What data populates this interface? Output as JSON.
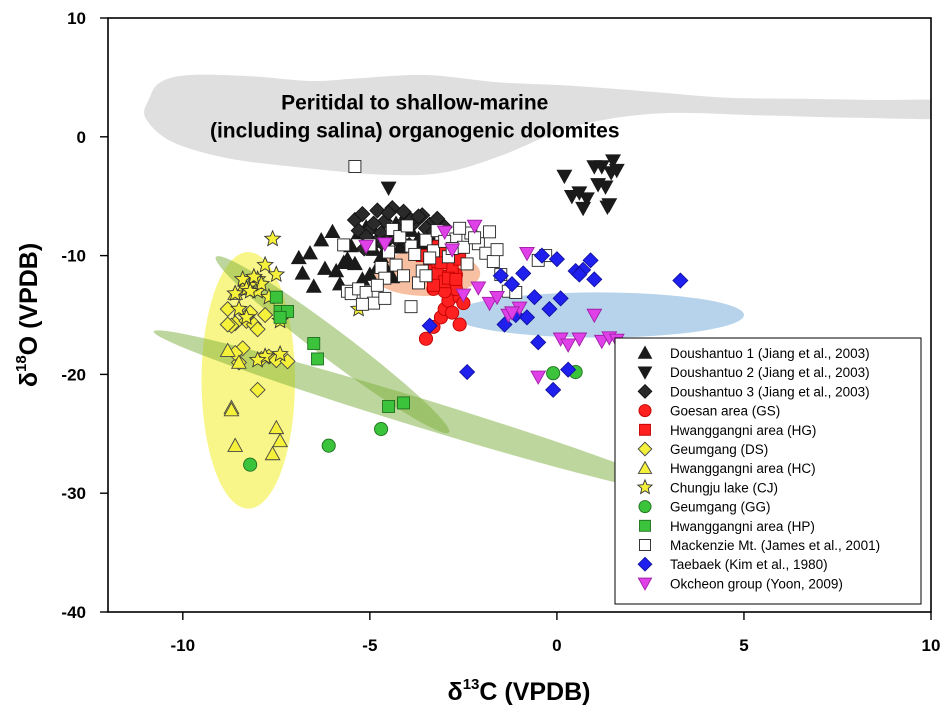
{
  "chart_data": {
    "type": "scatter",
    "title": "",
    "xlabel": {
      "prefix": "δ",
      "sup": "13",
      "rest": "C (VPDB)"
    },
    "ylabel": {
      "prefix": "δ",
      "sup": "18",
      "rest": "O (VPDB)"
    },
    "xlim": [
      -12,
      10
    ],
    "ylim": [
      -40,
      10
    ],
    "xticks": [
      -10,
      -5,
      0,
      5,
      10
    ],
    "xtick_labels": [
      "-10",
      "-5",
      "0",
      "5",
      "10"
    ],
    "yticks": [
      10,
      0,
      -10,
      -20,
      -30,
      -40
    ],
    "ytick_labels": [
      "10",
      "0",
      "-10",
      "-20",
      "-30",
      "-40"
    ],
    "grid": false,
    "legend_position": "lower-right",
    "annotation": {
      "line1": "Peritidal to shallow-marine",
      "line2": "(including salina) organogenic dolomites",
      "x": -3.8,
      "y": 1.2
    },
    "regions": [
      {
        "name": "marine-dolomite-field",
        "color": "#d9d9d9",
        "opacity": 0.85
      },
      {
        "name": "yellow-field",
        "color": "#f5f03a",
        "opacity": 0.6,
        "cx": -8.25,
        "cy": -20.5,
        "rx": 1.25,
        "ry": 10.8,
        "angle": 0
      },
      {
        "name": "green-field-upper",
        "color": "#7cad3c",
        "opacity": 0.5,
        "cx": -6.0,
        "cy": -17.5,
        "rx": 3.9,
        "ry": 1.25,
        "angle": 37
      },
      {
        "name": "green-field-lower",
        "color": "#7cad3c",
        "opacity": 0.5,
        "cx": -3.7,
        "cy": -23.2,
        "rx": 7.4,
        "ry": 1.2,
        "angle": 17
      },
      {
        "name": "blue-field",
        "color": "#6ea7d8",
        "opacity": 0.5,
        "cx": 1.1,
        "cy": -15.0,
        "rx": 3.9,
        "ry": 1.9,
        "angle": 0
      },
      {
        "name": "orange-field",
        "color": "#f4a57a",
        "opacity": 0.7,
        "cx": -3.5,
        "cy": -11.5,
        "rx": 1.45,
        "ry": 1.9,
        "angle": 0
      }
    ],
    "series": [
      {
        "name": "Doushantuo 1 (Jiang et al., 2003)",
        "marker": "triangle-up",
        "color": "#1a1a1a",
        "edge": "#1a1a1a",
        "x": [
          -6.9,
          -6.6,
          -6.3,
          -6.0,
          -5.9,
          -5.7,
          -5.5,
          -5.3,
          -5.1,
          -4.9,
          -4.7,
          -4.5,
          -4.3,
          -4.1,
          -3.9,
          -3.7,
          -3.6,
          -3.4,
          -6.8,
          -6.2,
          -5.8,
          -5.4,
          -5.0,
          -4.6,
          -4.4,
          -6.5,
          -5.6,
          -5.2,
          -4.8,
          -4.2
        ],
        "y": [
          -10.2,
          -9.8,
          -8.7,
          -8.0,
          -11.3,
          -10.6,
          -9.2,
          -8.1,
          -7.6,
          -9.5,
          -10.1,
          -8.4,
          -7.3,
          -8.8,
          -7.9,
          -8.6,
          -9.0,
          -8.3,
          -11.5,
          -11.1,
          -12.4,
          -10.7,
          -11.6,
          -10.9,
          -11.8,
          -12.6,
          -10.3,
          -12.0,
          -11.0,
          -9.3
        ]
      },
      {
        "name": "Doushantuo 2 (Jiang et al., 2003)",
        "marker": "triangle-down",
        "color": "#1a1a1a",
        "edge": "#1a1a1a",
        "x": [
          -4.5,
          0.2,
          0.6,
          0.8,
          1.0,
          1.1,
          1.3,
          1.4,
          1.5,
          1.6,
          1.35,
          1.2,
          0.7,
          1.45,
          0.4
        ],
        "y": [
          -4.3,
          -3.3,
          -4.7,
          -5.2,
          -2.5,
          -4.0,
          -4.2,
          -5.7,
          -2.0,
          -2.8,
          -5.9,
          -2.5,
          -6.0,
          -3.0,
          -5.0
        ]
      },
      {
        "name": "Doushantuo 3 (Jiang et al., 2003)",
        "marker": "diamond",
        "color": "#2a2a2a",
        "edge": "#111111",
        "x": [
          -5.4,
          -5.2,
          -5.0,
          -4.8,
          -4.6,
          -4.4,
          -4.2,
          -4.0,
          -3.8,
          -3.6,
          -3.4,
          -3.2,
          -3.0,
          -5.3,
          -5.1,
          -4.9,
          -4.7,
          -4.5,
          -4.3,
          -4.1,
          -3.9,
          -3.7,
          -3.5,
          -3.3,
          -4.55,
          -4.25,
          -3.95,
          -4.85,
          -5.15,
          -4.65
        ],
        "y": [
          -7.0,
          -6.5,
          -7.8,
          -6.2,
          -7.1,
          -6.0,
          -7.5,
          -6.8,
          -7.2,
          -6.6,
          -7.4,
          -6.9,
          -7.6,
          -7.9,
          -8.4,
          -7.3,
          -8.1,
          -6.4,
          -8.6,
          -6.3,
          -7.0,
          -6.7,
          -7.7,
          -8.0,
          -8.8,
          -7.8,
          -9.1,
          -8.9,
          -9.4,
          -9.0
        ]
      },
      {
        "name": "Goesan area (GS)",
        "marker": "circle",
        "color": "#ff2020",
        "edge": "#c00000",
        "x": [
          -3.5,
          -3.3,
          -3.1,
          -3.0,
          -2.9,
          -2.8,
          -2.7,
          -2.6,
          -3.2,
          -3.4,
          -2.5,
          -2.6,
          -2.9,
          -3.1,
          -2.7,
          -3.0,
          -3.3,
          -2.8,
          -3.0,
          -3.2
        ],
        "y": [
          -17.0,
          -16.0,
          -15.2,
          -14.5,
          -13.8,
          -12.5,
          -11.6,
          -13.5,
          -12.0,
          -11.0,
          -14.0,
          -15.8,
          -10.5,
          -10.0,
          -12.8,
          -11.8,
          -12.8,
          -14.8,
          -13.0,
          -9.2
        ]
      },
      {
        "name": "Hwanggangni area (HG)",
        "marker": "square",
        "color": "#ff2020",
        "edge": "#c00000",
        "x": [
          -3.6,
          -3.4,
          -3.2,
          -3.0,
          -2.8,
          -2.6,
          -3.3,
          -3.1,
          -2.9,
          -3.5,
          -2.7,
          -3.0
        ],
        "y": [
          -10.0,
          -10.8,
          -11.5,
          -12.2,
          -11.0,
          -10.3,
          -12.5,
          -10.6,
          -11.9,
          -11.3,
          -12.0,
          -9.6
        ]
      },
      {
        "name": "Geumgang (DS)",
        "marker": "diamond",
        "color": "#f5f03a",
        "edge": "#444444",
        "x": [
          -8.8,
          -8.6,
          -8.5,
          -8.3,
          -8.2,
          -8.1,
          -7.9,
          -7.7,
          -7.5,
          -7.2,
          -8.7,
          -8.4,
          -8.0,
          -7.8,
          -8.8,
          -8.0,
          -8.6
        ],
        "y": [
          -14.5,
          -15.7,
          -19.0,
          -15.5,
          -14.8,
          -15.8,
          -18.7,
          -18.5,
          -18.8,
          -18.9,
          -15.9,
          -17.8,
          -21.3,
          -15.0,
          -15.8,
          -16.2,
          -18.2
        ]
      },
      {
        "name": "Hwanggangni area (HC)",
        "marker": "triangle-up",
        "color": "#f5f03a",
        "edge": "#444444",
        "x": [
          -8.8,
          -8.7,
          -8.6,
          -8.5,
          -8.4,
          -7.6,
          -7.4,
          -8.7,
          -7.5,
          -8.6
        ],
        "y": [
          -18.0,
          -22.8,
          -26.0,
          -19.0,
          -12.8,
          -26.7,
          -25.6,
          -23.0,
          -24.5,
          -13.2
        ]
      },
      {
        "name": "Chungju lake (CJ)",
        "marker": "star",
        "color": "#f5f03a",
        "edge": "#333333",
        "x": [
          -7.6,
          -7.8,
          -7.5,
          -8.0,
          -8.2,
          -8.4,
          -8.3,
          -8.0,
          -7.9,
          -8.5,
          -8.6,
          -7.7,
          -7.4,
          -8.1,
          -7.8,
          -8.3,
          -7.4,
          -8.2,
          -5.3,
          -8.0
        ],
        "y": [
          -8.6,
          -10.8,
          -11.6,
          -12.0,
          -12.5,
          -12.0,
          -12.8,
          -13.0,
          -12.4,
          -14.5,
          -13.2,
          -13.5,
          -15.5,
          -11.8,
          -18.5,
          -15.2,
          -18.3,
          -13.0,
          -14.5,
          -18.8
        ]
      },
      {
        "name": "Geumgang (GG)",
        "marker": "circle",
        "color": "#3cc33c",
        "edge": "#1f6f1f",
        "x": [
          -8.2,
          -6.1,
          -4.7,
          -0.1,
          0.5
        ],
        "y": [
          -27.6,
          -26.0,
          -24.6,
          -19.9,
          -19.8
        ]
      },
      {
        "name": "Hwanggangni area (HP)",
        "marker": "square",
        "color": "#3cc33c",
        "edge": "#1f6f1f",
        "x": [
          -7.5,
          -7.4,
          -7.2,
          -6.5,
          -6.4,
          -4.5,
          -4.1,
          -7.4
        ],
        "y": [
          -13.5,
          -14.7,
          -14.7,
          -17.4,
          -18.7,
          -22.7,
          -22.4,
          -15.2
        ]
      },
      {
        "name": "Mackenzie Mt. (James et al., 2001)",
        "marker": "square",
        "color": "#ffffff",
        "edge": "#222222",
        "x": [
          -5.4,
          -5.6,
          -5.5,
          -5.3,
          -5.1,
          -4.9,
          -4.7,
          -4.5,
          -4.3,
          -4.1,
          -3.9,
          -3.7,
          -3.5,
          -3.3,
          -3.1,
          -2.9,
          -2.7,
          -2.5,
          -2.3,
          -2.1,
          -1.9,
          -1.7,
          -4.4,
          -4.2,
          -4.0,
          -3.8,
          -3.6,
          -3.4,
          -3.2,
          -3.0,
          -2.8,
          -2.6,
          -2.4,
          -2.2,
          -4.6,
          -4.8,
          -5.0,
          -1.5,
          -1.3,
          -1.1,
          -0.3,
          -0.5,
          -5.7,
          -5.2,
          -4.6,
          -3.9,
          -3.5,
          -1.8,
          -1.6
        ],
        "y": [
          -2.5,
          -13.0,
          -13.2,
          -12.8,
          -13.1,
          -14.0,
          -11.0,
          -9.7,
          -10.8,
          -11.7,
          -9.2,
          -12.3,
          -8.7,
          -9.6,
          -8.2,
          -10.1,
          -8.6,
          -9.3,
          -8.1,
          -9.0,
          -9.8,
          -10.5,
          -7.8,
          -8.4,
          -7.5,
          -9.9,
          -11.3,
          -10.2,
          -7.9,
          -8.8,
          -9.4,
          -7.7,
          -10.7,
          -8.5,
          -11.9,
          -12.5,
          -9.1,
          -11.6,
          -13.0,
          -13.1,
          -10.0,
          -10.4,
          -9.1,
          -14.1,
          -13.6,
          -14.3,
          -11.7,
          -8.0,
          -9.5
        ]
      },
      {
        "name": "Taebaek (Kim et al., 1980)",
        "marker": "diamond",
        "color": "#2020ee",
        "edge": "#1010a0",
        "x": [
          -1.2,
          -0.9,
          -0.6,
          -0.4,
          -0.2,
          0.1,
          0.3,
          0.5,
          0.7,
          0.9,
          1.0,
          3.3,
          -1.4,
          -1.1,
          -0.8,
          -0.5,
          0.0,
          0.6,
          -3.4,
          -2.4,
          -0.1,
          -1.5
        ],
        "y": [
          -12.4,
          -11.5,
          -13.5,
          -10.0,
          -14.5,
          -13.6,
          -19.6,
          -11.3,
          -11.2,
          -10.4,
          -12.0,
          -12.1,
          -15.8,
          -15.0,
          -15.2,
          -17.3,
          -10.3,
          -11.6,
          -15.9,
          -19.8,
          -21.3,
          -11.7
        ]
      },
      {
        "name": "Okcheon group (Yoon, 2009)",
        "marker": "triangle-down",
        "color": "#e040e8",
        "edge": "#a020a8",
        "x": [
          -5.1,
          -4.6,
          -2.8,
          -2.2,
          -2.1,
          -1.8,
          -1.6,
          -1.3,
          -1.0,
          -0.8,
          -0.5,
          0.1,
          0.3,
          0.6,
          1.0,
          1.2,
          1.4,
          1.6,
          -2.5,
          -1.2,
          -3.0
        ],
        "y": [
          -9.2,
          -9.0,
          -9.5,
          -7.5,
          -12.7,
          -14.0,
          -13.5,
          -15.0,
          -14.4,
          -9.8,
          -20.2,
          -17.0,
          -17.5,
          -17.0,
          -15.0,
          -17.2,
          -16.9,
          -17.1,
          -13.3,
          -14.8,
          -8.0
        ]
      }
    ]
  }
}
